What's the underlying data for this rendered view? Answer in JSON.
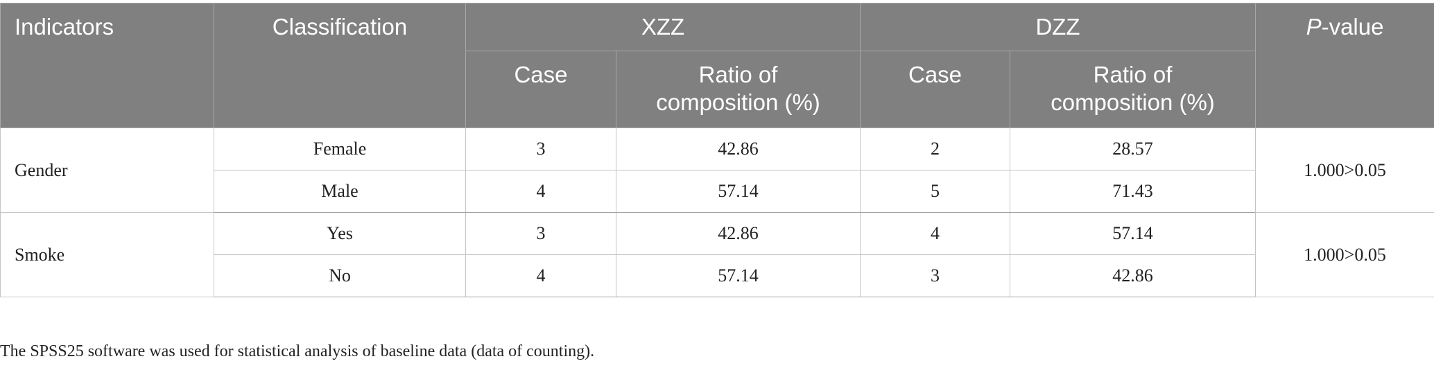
{
  "header": {
    "indicators": "Indicators",
    "classification": "Classification",
    "group1": "XZZ",
    "group2": "DZZ",
    "p_italic": "P",
    "p_suffix": "-value",
    "case": "Case",
    "ratio_line1": "Ratio of",
    "ratio_line2": "composition (%)"
  },
  "rows": [
    {
      "indicator": "Gender",
      "classification": "Female",
      "xzz_case": "3",
      "xzz_ratio": "42.86",
      "dzz_case": "2",
      "dzz_ratio": "28.57",
      "p_value": "1.000>0.05"
    },
    {
      "classification": "Male",
      "xzz_case": "4",
      "xzz_ratio": "57.14",
      "dzz_case": "5",
      "dzz_ratio": "71.43"
    },
    {
      "indicator": "Smoke",
      "classification": "Yes",
      "xzz_case": "3",
      "xzz_ratio": "42.86",
      "dzz_case": "4",
      "dzz_ratio": "57.14",
      "p_value": "1.000>0.05"
    },
    {
      "classification": "No",
      "xzz_case": "4",
      "xzz_ratio": "57.14",
      "dzz_case": "3",
      "dzz_ratio": "42.86"
    }
  ],
  "footnote": "The SPSS25 software was used for statistical analysis of baseline data (data of counting)."
}
